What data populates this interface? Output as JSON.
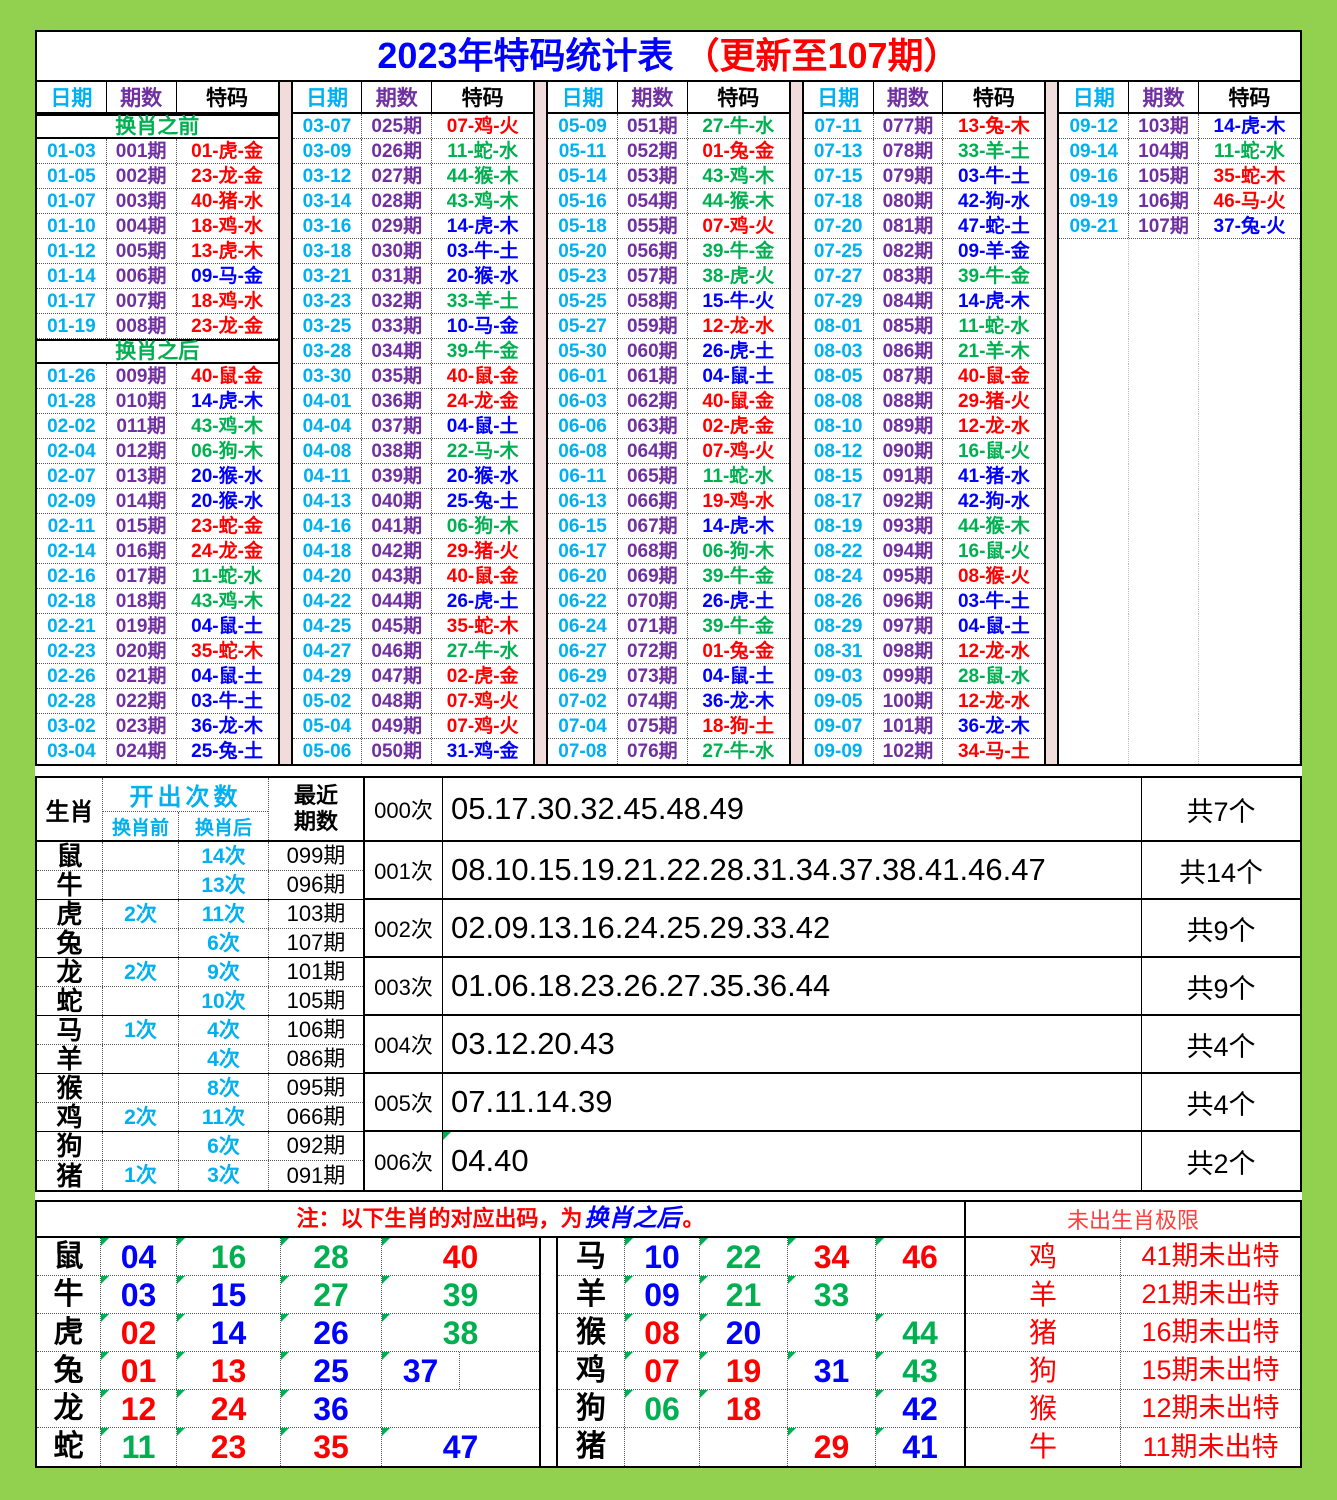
{
  "title": {
    "main": "2023年特码统计表",
    "suffix": "（更新至107期）"
  },
  "periods_header": {
    "date": "日期",
    "period": "期数",
    "code": "特码"
  },
  "colors": {
    "red": "#FF0000",
    "blue": "#0000FF",
    "green": "#00B050",
    "cyan": "#00B0F0",
    "purple": "#7030A0",
    "page_green": "#92D050",
    "separator_pink": "#F2DCDB"
  },
  "periods": [
    {
      "rows": [
        {
          "label": "换肖之前"
        },
        [
          "01-03",
          "001期",
          "01-虎-金",
          "r"
        ],
        [
          "01-05",
          "002期",
          "23-龙-金",
          "r"
        ],
        [
          "01-07",
          "003期",
          "40-猪-水",
          "r"
        ],
        [
          "01-10",
          "004期",
          "18-鸡-水",
          "r"
        ],
        [
          "01-12",
          "005期",
          "13-虎-木",
          "r"
        ],
        [
          "01-14",
          "006期",
          "09-马-金",
          "b"
        ],
        [
          "01-17",
          "007期",
          "18-鸡-水",
          "r"
        ],
        [
          "01-19",
          "008期",
          "23-龙-金",
          "r"
        ],
        {
          "label": "换肖之后"
        },
        [
          "01-26",
          "009期",
          "40-鼠-金",
          "r"
        ],
        [
          "01-28",
          "010期",
          "14-虎-木",
          "b"
        ],
        [
          "02-02",
          "011期",
          "43-鸡-木",
          "g"
        ],
        [
          "02-04",
          "012期",
          "06-狗-木",
          "g"
        ],
        [
          "02-07",
          "013期",
          "20-猴-水",
          "b"
        ],
        [
          "02-09",
          "014期",
          "20-猴-水",
          "b"
        ],
        [
          "02-11",
          "015期",
          "23-蛇-金",
          "r"
        ],
        [
          "02-14",
          "016期",
          "24-龙-金",
          "r"
        ],
        [
          "02-16",
          "017期",
          "11-蛇-水",
          "g"
        ],
        [
          "02-18",
          "018期",
          "43-鸡-木",
          "g"
        ],
        [
          "02-21",
          "019期",
          "04-鼠-土",
          "b"
        ],
        [
          "02-23",
          "020期",
          "35-蛇-木",
          "r"
        ],
        [
          "02-26",
          "021期",
          "04-鼠-土",
          "b"
        ],
        [
          "02-28",
          "022期",
          "03-牛-土",
          "b"
        ],
        [
          "03-02",
          "023期",
          "36-龙-木",
          "b"
        ],
        [
          "03-04",
          "024期",
          "25-兔-土",
          "b"
        ]
      ]
    },
    {
      "rows": [
        [
          "03-07",
          "025期",
          "07-鸡-火",
          "r"
        ],
        [
          "03-09",
          "026期",
          "11-蛇-水",
          "g"
        ],
        [
          "03-12",
          "027期",
          "44-猴-木",
          "g"
        ],
        [
          "03-14",
          "028期",
          "43-鸡-木",
          "g"
        ],
        [
          "03-16",
          "029期",
          "14-虎-木",
          "b"
        ],
        [
          "03-18",
          "030期",
          "03-牛-土",
          "b"
        ],
        [
          "03-21",
          "031期",
          "20-猴-水",
          "b"
        ],
        [
          "03-23",
          "032期",
          "33-羊-土",
          "g"
        ],
        [
          "03-25",
          "033期",
          "10-马-金",
          "b"
        ],
        [
          "03-28",
          "034期",
          "39-牛-金",
          "g"
        ],
        [
          "03-30",
          "035期",
          "40-鼠-金",
          "r"
        ],
        [
          "04-01",
          "036期",
          "24-龙-金",
          "r"
        ],
        [
          "04-04",
          "037期",
          "04-鼠-土",
          "b"
        ],
        [
          "04-08",
          "038期",
          "22-马-木",
          "g"
        ],
        [
          "04-11",
          "039期",
          "20-猴-水",
          "b"
        ],
        [
          "04-13",
          "040期",
          "25-兔-土",
          "b"
        ],
        [
          "04-16",
          "041期",
          "06-狗-木",
          "g"
        ],
        [
          "04-18",
          "042期",
          "29-猪-火",
          "r"
        ],
        [
          "04-20",
          "043期",
          "40-鼠-金",
          "r"
        ],
        [
          "04-22",
          "044期",
          "26-虎-土",
          "b"
        ],
        [
          "04-25",
          "045期",
          "35-蛇-木",
          "r"
        ],
        [
          "04-27",
          "046期",
          "27-牛-水",
          "g"
        ],
        [
          "04-29",
          "047期",
          "02-虎-金",
          "r"
        ],
        [
          "05-02",
          "048期",
          "07-鸡-火",
          "r"
        ],
        [
          "05-04",
          "049期",
          "07-鸡-火",
          "r"
        ],
        [
          "05-06",
          "050期",
          "31-鸡-金",
          "b"
        ]
      ]
    },
    {
      "rows": [
        [
          "05-09",
          "051期",
          "27-牛-水",
          "g"
        ],
        [
          "05-11",
          "052期",
          "01-兔-金",
          "r"
        ],
        [
          "05-14",
          "053期",
          "43-鸡-木",
          "g"
        ],
        [
          "05-16",
          "054期",
          "44-猴-木",
          "g"
        ],
        [
          "05-18",
          "055期",
          "07-鸡-火",
          "r"
        ],
        [
          "05-20",
          "056期",
          "39-牛-金",
          "g"
        ],
        [
          "05-23",
          "057期",
          "38-虎-火",
          "g"
        ],
        [
          "05-25",
          "058期",
          "15-牛-火",
          "b"
        ],
        [
          "05-27",
          "059期",
          "12-龙-水",
          "r"
        ],
        [
          "05-30",
          "060期",
          "26-虎-土",
          "b"
        ],
        [
          "06-01",
          "061期",
          "04-鼠-土",
          "b"
        ],
        [
          "06-03",
          "062期",
          "40-鼠-金",
          "r"
        ],
        [
          "06-06",
          "063期",
          "02-虎-金",
          "r"
        ],
        [
          "06-08",
          "064期",
          "07-鸡-火",
          "r"
        ],
        [
          "06-11",
          "065期",
          "11-蛇-水",
          "g"
        ],
        [
          "06-13",
          "066期",
          "19-鸡-水",
          "r"
        ],
        [
          "06-15",
          "067期",
          "14-虎-木",
          "b"
        ],
        [
          "06-17",
          "068期",
          "06-狗-木",
          "g"
        ],
        [
          "06-20",
          "069期",
          "39-牛-金",
          "g"
        ],
        [
          "06-22",
          "070期",
          "26-虎-土",
          "b"
        ],
        [
          "06-24",
          "071期",
          "39-牛-金",
          "g"
        ],
        [
          "06-27",
          "072期",
          "01-兔-金",
          "r"
        ],
        [
          "06-29",
          "073期",
          "04-鼠-土",
          "b"
        ],
        [
          "07-02",
          "074期",
          "36-龙-木",
          "b"
        ],
        [
          "07-04",
          "075期",
          "18-狗-土",
          "r"
        ],
        [
          "07-08",
          "076期",
          "27-牛-水",
          "g"
        ]
      ]
    },
    {
      "rows": [
        [
          "07-11",
          "077期",
          "13-兔-木",
          "r"
        ],
        [
          "07-13",
          "078期",
          "33-羊-土",
          "g"
        ],
        [
          "07-15",
          "079期",
          "03-牛-土",
          "b"
        ],
        [
          "07-18",
          "080期",
          "42-狗-水",
          "b"
        ],
        [
          "07-20",
          "081期",
          "47-蛇-土",
          "b"
        ],
        [
          "07-25",
          "082期",
          "09-羊-金",
          "b"
        ],
        [
          "07-27",
          "083期",
          "39-牛-金",
          "g"
        ],
        [
          "07-29",
          "084期",
          "14-虎-木",
          "b"
        ],
        [
          "08-01",
          "085期",
          "11-蛇-水",
          "g"
        ],
        [
          "08-03",
          "086期",
          "21-羊-木",
          "g"
        ],
        [
          "08-05",
          "087期",
          "40-鼠-金",
          "r"
        ],
        [
          "08-08",
          "088期",
          "29-猪-火",
          "r"
        ],
        [
          "08-10",
          "089期",
          "12-龙-水",
          "r"
        ],
        [
          "08-12",
          "090期",
          "16-鼠-火",
          "g"
        ],
        [
          "08-15",
          "091期",
          "41-猪-水",
          "b"
        ],
        [
          "08-17",
          "092期",
          "42-狗-水",
          "b"
        ],
        [
          "08-19",
          "093期",
          "44-猴-木",
          "g"
        ],
        [
          "08-22",
          "094期",
          "16-鼠-火",
          "g"
        ],
        [
          "08-24",
          "095期",
          "08-猴-火",
          "r"
        ],
        [
          "08-26",
          "096期",
          "03-牛-土",
          "b"
        ],
        [
          "08-29",
          "097期",
          "04-鼠-土",
          "b"
        ],
        [
          "08-31",
          "098期",
          "12-龙-水",
          "r"
        ],
        [
          "09-03",
          "099期",
          "28-鼠-水",
          "g"
        ],
        [
          "09-05",
          "100期",
          "12-龙-水",
          "r"
        ],
        [
          "09-07",
          "101期",
          "36-龙-木",
          "b"
        ],
        [
          "09-09",
          "102期",
          "34-马-土",
          "r"
        ]
      ]
    },
    {
      "rows": [
        [
          "09-12",
          "103期",
          "14-虎-木",
          "b"
        ],
        [
          "09-14",
          "104期",
          "11-蛇-水",
          "g"
        ],
        [
          "09-16",
          "105期",
          "35-蛇-木",
          "r"
        ],
        [
          "09-19",
          "106期",
          "46-马-火",
          "r"
        ],
        [
          "09-21",
          "107期",
          "37-兔-火",
          "b"
        ]
      ]
    }
  ],
  "stats": {
    "zodiac_col": "生肖",
    "count_col": "开出次数",
    "before": "换肖前",
    "after": "换肖后",
    "recent_line1": "最近",
    "recent_line2": "期数",
    "rows": [
      [
        "鼠",
        "",
        "14次",
        "099期"
      ],
      [
        "牛",
        "",
        "13次",
        "096期"
      ],
      [
        "虎",
        "2次",
        "11次",
        "103期"
      ],
      [
        "兔",
        "",
        "6次",
        "107期"
      ],
      [
        "龙",
        "2次",
        "9次",
        "101期"
      ],
      [
        "蛇",
        "",
        "10次",
        "105期"
      ],
      [
        "马",
        "1次",
        "4次",
        "106期"
      ],
      [
        "羊",
        "",
        "4次",
        "086期"
      ],
      [
        "猴",
        "",
        "8次",
        "095期"
      ],
      [
        "鸡",
        "2次",
        "11次",
        "066期"
      ],
      [
        "狗",
        "",
        "6次",
        "092期"
      ],
      [
        "猪",
        "1次",
        "3次",
        "091期"
      ]
    ],
    "counts": [
      [
        "000次",
        "05.17.30.32.45.48.49",
        "共7个",
        0
      ],
      [
        "001次",
        "08.10.15.19.21.22.28.31.34.37.38.41.46.47",
        "共14个",
        0
      ],
      [
        "002次",
        "02.09.13.16.24.25.29.33.42",
        "共9个",
        0
      ],
      [
        "003次",
        "01.06.18.23.26.27.35.36.44",
        "共9个",
        0
      ],
      [
        "004次",
        "03.12.20.43",
        "共4个",
        0
      ],
      [
        "005次",
        "07.11.14.39",
        "共4个",
        0
      ],
      [
        "006次",
        "04.40",
        "共2个",
        1
      ]
    ]
  },
  "note": {
    "prefix": "注：以下生肖的对应出码，为",
    "highlight": "换肖之后",
    "suffix": "。"
  },
  "limit_header": "未出生肖极限",
  "bottom_left": [
    {
      "z": "鼠",
      "cells": [
        [
          "04",
          "b"
        ],
        [
          "16",
          "g"
        ],
        [
          "28",
          "g"
        ],
        [
          "40",
          "r"
        ]
      ]
    },
    {
      "z": "牛",
      "cells": [
        [
          "03",
          "b"
        ],
        [
          "15",
          "b"
        ],
        [
          "27",
          "g"
        ],
        [
          "39",
          "g"
        ]
      ]
    },
    {
      "z": "虎",
      "cells": [
        [
          "02",
          "r"
        ],
        [
          "14",
          "b"
        ],
        [
          "26",
          "b"
        ],
        [
          "38",
          "g"
        ]
      ]
    },
    {
      "z": "兔",
      "cells": [
        [
          "01",
          "r"
        ],
        [
          "13",
          "r"
        ],
        [
          "25",
          "b"
        ],
        [
          "37",
          "b"
        ],
        [
          "",
          ""
        ]
      ]
    },
    {
      "z": "龙",
      "cells": [
        [
          "12",
          "r"
        ],
        [
          "24",
          "r"
        ],
        [
          "36",
          "b"
        ],
        [
          "",
          ""
        ]
      ]
    },
    {
      "z": "蛇",
      "cells": [
        [
          "11",
          "g"
        ],
        [
          "23",
          "r"
        ],
        [
          "35",
          "r"
        ],
        [
          "47",
          "b"
        ]
      ]
    }
  ],
  "bottom_right": [
    {
      "z": "马",
      "cells": [
        [
          "10",
          "b"
        ],
        [
          "22",
          "g"
        ],
        [
          "34",
          "r"
        ],
        [
          "46",
          "r"
        ]
      ]
    },
    {
      "z": "羊",
      "cells": [
        [
          "09",
          "b"
        ],
        [
          "21",
          "g"
        ],
        [
          "33",
          "g"
        ],
        [
          "",
          ""
        ]
      ]
    },
    {
      "z": "猴",
      "cells": [
        [
          "08",
          "r"
        ],
        [
          "20",
          "b"
        ],
        [
          "",
          ""
        ],
        [
          "44",
          "g"
        ]
      ]
    },
    {
      "z": "鸡",
      "cells": [
        [
          "07",
          "r"
        ],
        [
          "19",
          "r"
        ],
        [
          "31",
          "b"
        ],
        [
          "43",
          "g"
        ]
      ]
    },
    {
      "z": "狗",
      "cells": [
        [
          "06",
          "g"
        ],
        [
          "18",
          "r"
        ],
        [
          "",
          ""
        ],
        [
          "42",
          "b"
        ]
      ]
    },
    {
      "z": "猪",
      "cells": [
        [
          "",
          ""
        ],
        [
          "",
          ""
        ],
        [
          "29",
          "r"
        ],
        [
          "41",
          "b"
        ]
      ]
    }
  ],
  "limits": [
    [
      "鸡",
      "41期未出特"
    ],
    [
      "羊",
      "21期未出特"
    ],
    [
      "猪",
      "16期未出特"
    ],
    [
      "狗",
      "15期未出特"
    ],
    [
      "猴",
      "12期未出特"
    ],
    [
      "牛",
      "11期未出特"
    ]
  ]
}
